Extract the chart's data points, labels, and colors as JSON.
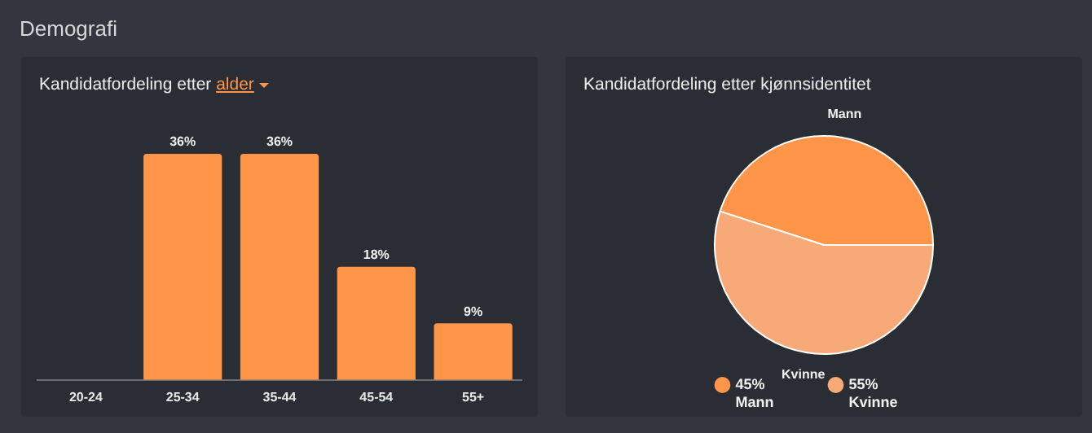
{
  "chart_data": [
    {
      "type": "bar",
      "title": "Kandidatfordeling etter alder",
      "annotations": [
        "Demografi"
      ],
      "categories": [
        "20-24",
        "25-34",
        "35-44",
        "45-54",
        "55+"
      ],
      "values": [
        0,
        36,
        36,
        18,
        9
      ],
      "value_labels": [
        null,
        "36%",
        "36%",
        "18%",
        "9%"
      ],
      "color": "#ff9548"
    },
    {
      "type": "pie",
      "title": "Kandidatfordeling etter kjønnsidentitet",
      "categories": [
        "Mann",
        "Kvinne"
      ],
      "values": [
        45,
        55
      ],
      "colors": [
        "#ff9548",
        "#f7a978"
      ],
      "value_labels": [
        "45%",
        "55%"
      ],
      "legend": "bottom"
    }
  ]
}
